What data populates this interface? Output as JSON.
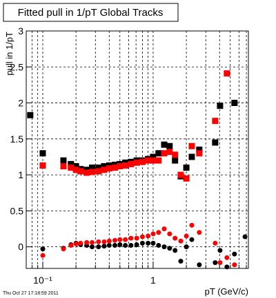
{
  "chart_data": {
    "type": "scatter",
    "title": "Fitted pull in 1/pT  Global Tracks",
    "y_label": "pull in 1/pT",
    "x_label": "pT (GeV/c)",
    "footer": "Thu Oct 27 17:18:59 2011",
    "x_log": true,
    "grid": true,
    "xlim": [
      0.0708,
      7.3
    ],
    "ylim": [
      -0.3,
      3.0
    ],
    "xticks": [
      {
        "value": 0.1,
        "label": "10⁻¹"
      },
      1
    ],
    "xminor_ticks": [
      0.08,
      0.09,
      0.2,
      0.3,
      0.4,
      0.5,
      0.6,
      0.7,
      0.8,
      0.9,
      2,
      3,
      4,
      5,
      6,
      7
    ],
    "yticks": [
      0,
      0.5,
      1,
      1.5,
      2,
      2.5,
      3
    ],
    "x": [
      0.077,
      0.1,
      0.154,
      0.18,
      0.2,
      0.22,
      0.25,
      0.28,
      0.32,
      0.36,
      0.4,
      0.45,
      0.5,
      0.56,
      0.63,
      0.71,
      0.8,
      0.9,
      1.0,
      1.12,
      1.26,
      1.41,
      1.58,
      1.78,
      2.0,
      2.24,
      2.62,
      3.65,
      4.04,
      4.66,
      5.46,
      6.8
    ],
    "series": [
      {
        "color": "#000000",
        "marker": "square",
        "values": [
          1.83,
          1.3,
          1.2,
          1.15,
          1.12,
          1.08,
          1.07,
          1.1,
          1.1,
          1.12,
          1.13,
          1.14,
          1.15,
          1.17,
          1.18,
          1.2,
          1.2,
          1.22,
          1.25,
          1.3,
          1.42,
          1.4,
          1.2,
          0.98,
          1.1,
          1.25,
          1.35,
          1.45,
          1.96,
          null,
          2.0,
          null
        ]
      },
      {
        "color": "#ff0000",
        "marker": "square",
        "values": [
          null,
          1.13,
          1.12,
          1.1,
          1.07,
          1.05,
          1.03,
          1.04,
          1.05,
          1.07,
          1.09,
          1.1,
          1.12,
          1.13,
          1.15,
          1.17,
          1.18,
          1.2,
          1.2,
          1.2,
          1.3,
          1.32,
          1.28,
          1.0,
          0.95,
          1.4,
          1.3,
          1.75,
          null,
          2.41,
          null,
          null
        ]
      },
      {
        "color": "#000000",
        "marker": "circle",
        "values": [
          null,
          -0.03,
          -0.02,
          0.03,
          0.05,
          0.03,
          0.02,
          0.0,
          0.0,
          0.01,
          0.02,
          0.02,
          0.03,
          0.02,
          0.02,
          0.03,
          0.05,
          0.05,
          0.05,
          0.02,
          0.0,
          -0.02,
          -0.05,
          -0.2,
          0.0,
          0.1,
          -0.25,
          -0.22,
          -0.05,
          -0.28,
          -0.1,
          0.14
        ]
      },
      {
        "color": "#ff0000",
        "marker": "circle",
        "values": [
          null,
          -0.12,
          -0.03,
          0.02,
          0.04,
          0.05,
          0.06,
          0.06,
          0.07,
          0.07,
          0.08,
          0.09,
          0.1,
          0.1,
          0.12,
          0.12,
          0.14,
          0.15,
          0.18,
          0.2,
          0.25,
          0.18,
          0.12,
          0.08,
          0.15,
          0.3,
          0.2,
          0.05,
          -0.22,
          -0.15,
          -0.25,
          null
        ]
      }
    ]
  }
}
